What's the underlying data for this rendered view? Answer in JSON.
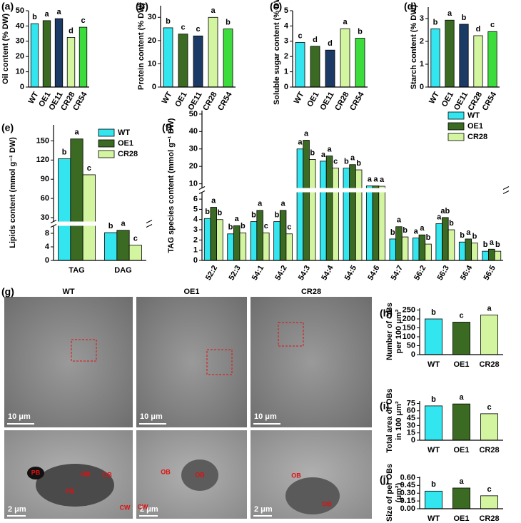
{
  "chart_data": [
    {
      "type": "bar",
      "panel": "(a)",
      "ylabel": "Oil content (% DW)",
      "categories": [
        "WT",
        "OE1",
        "OE11",
        "CR28",
        "CR54"
      ],
      "values": [
        41.5,
        43.5,
        44.8,
        32.5,
        39.2
      ],
      "colors": [
        "#33e5ee",
        "#3b6b22",
        "#1c3a66",
        "#d4f5a0",
        "#3ddc3d"
      ],
      "letters": [
        "b",
        "a",
        "a",
        "d",
        "c"
      ],
      "ylim": [
        0,
        50
      ],
      "yticks": [
        0,
        10,
        20,
        30,
        40,
        50
      ]
    },
    {
      "type": "bar",
      "panel": "(b)",
      "ylabel": "Protein content (% DW)",
      "categories": [
        "WT",
        "OE1",
        "OE11",
        "CR28",
        "CR54"
      ],
      "values": [
        25.5,
        22.8,
        22,
        30,
        25
      ],
      "colors": [
        "#33e5ee",
        "#3b6b22",
        "#1c3a66",
        "#d4f5a0",
        "#3ddc3d"
      ],
      "letters": [
        "b",
        "c",
        "c",
        "a",
        "b"
      ],
      "ylim": [
        0,
        35
      ],
      "yticks": [
        0,
        10,
        20,
        30
      ]
    },
    {
      "type": "bar",
      "panel": "(c)",
      "ylabel": "Soluble sugar content (% DW)",
      "categories": [
        "WT",
        "OE1",
        "OE11",
        "CR28",
        "CR54"
      ],
      "values": [
        2.92,
        2.67,
        2.42,
        3.82,
        3.2
      ],
      "colors": [
        "#33e5ee",
        "#3b6b22",
        "#1c3a66",
        "#d4f5a0",
        "#3ddc3d"
      ],
      "letters": [
        "c",
        "d",
        "d",
        "a",
        "b"
      ],
      "ylim": [
        0,
        5
      ],
      "yticks": [
        0,
        1,
        2,
        3,
        4,
        5
      ]
    },
    {
      "type": "bar",
      "panel": "(d)",
      "ylabel": "Starch content (% DW)",
      "categories": [
        "WT",
        "OE1",
        "OE11",
        "CR28",
        "CR54"
      ],
      "values": [
        2.55,
        2.93,
        2.75,
        2.25,
        2.43
      ],
      "colors": [
        "#33e5ee",
        "#3b6b22",
        "#1c3a66",
        "#d4f5a0",
        "#3ddc3d"
      ],
      "letters": [
        "b",
        "a",
        "b",
        "d",
        "c"
      ],
      "ylim": [
        0,
        3.5
      ],
      "yticks": [
        0,
        1,
        2,
        3
      ]
    },
    {
      "type": "bar",
      "panel": "(e)",
      "ylabel": "Lipids content (mmol g⁻¹ DW)",
      "categories": [
        "TAG",
        "DAG"
      ],
      "series": [
        {
          "name": "WT",
          "color": "#33e5ee",
          "values": [
            122,
            8.2
          ],
          "letters": [
            "b",
            "b"
          ]
        },
        {
          "name": "OE1",
          "color": "#3b6b22",
          "values": [
            153,
            10.2
          ],
          "letters": [
            "a",
            "a"
          ]
        },
        {
          "name": "CR28",
          "color": "#d4f5a0",
          "values": [
            97,
            4.5
          ],
          "letters": [
            "c",
            "c"
          ]
        }
      ],
      "ylim": [
        0,
        175
      ],
      "ybreak": [
        10,
        25
      ],
      "yticks": [
        0,
        4,
        8,
        30,
        60,
        90,
        120,
        150
      ]
    },
    {
      "type": "bar",
      "panel": "(f)",
      "ylabel": "TAG species content (mmol g⁻¹ DW)",
      "categories": [
        "52:2",
        "52:3",
        "54:1",
        "54:2",
        "54:3",
        "54:4",
        "54:5",
        "54:6",
        "54:7",
        "56:2",
        "56:3",
        "56:4",
        "56:5"
      ],
      "series": [
        {
          "name": "WT",
          "color": "#33e5ee",
          "values": [
            4.1,
            2.6,
            3.8,
            3.8,
            30,
            23,
            19,
            8.8,
            2.1,
            2.2,
            3.6,
            1.8,
            0.9
          ],
          "letters": [
            "b",
            "b",
            "b",
            "b",
            "a",
            "a",
            "b",
            "a",
            "b",
            "a",
            "a",
            "b",
            "b"
          ]
        },
        {
          "name": "OE1",
          "color": "#3b6b22",
          "values": [
            5.2,
            3.4,
            4.9,
            4.9,
            35,
            26,
            21,
            8.8,
            3.3,
            2.5,
            4.2,
            2.1,
            1.1
          ],
          "letters": [
            "a",
            "a",
            "a",
            "a",
            "a",
            "a",
            "a",
            "a",
            "a",
            "a",
            "ab",
            "a",
            "a"
          ]
        },
        {
          "name": "CR28",
          "color": "#d4f5a0",
          "values": [
            4.0,
            2.7,
            2.7,
            2.6,
            24,
            19,
            18,
            8.6,
            2.3,
            1.6,
            3.0,
            1.7,
            0.9
          ],
          "letters": [
            "b",
            "b",
            "c",
            "c",
            "b",
            "c",
            "b",
            "a",
            "b",
            "b",
            "b",
            "b",
            "b"
          ]
        }
      ],
      "ylim": [
        0,
        52
      ],
      "ybreak": [
        6.6,
        8
      ],
      "yticks": [
        0,
        1,
        2,
        3,
        4,
        5,
        6,
        10,
        20,
        30,
        40,
        50
      ]
    },
    {
      "type": "bar",
      "panel": "(h)",
      "ylabel": [
        "Number of OBs",
        "per 100 μm²"
      ],
      "categories": [
        "WT",
        "OE1",
        "CR28"
      ],
      "values": [
        200,
        182,
        222
      ],
      "colors": [
        "#33e5ee",
        "#3b6b22",
        "#d4f5a0"
      ],
      "letters": [
        "b",
        "c",
        "a"
      ],
      "ylim": [
        0,
        260
      ],
      "yticks": [
        0,
        50,
        100,
        150,
        200,
        250
      ]
    },
    {
      "type": "bar",
      "panel": "(i)",
      "ylabel": [
        "Total area of OBs",
        "in 100 μm²"
      ],
      "categories": [
        "WT",
        "OE1",
        "CR28"
      ],
      "values": [
        70,
        74,
        54
      ],
      "colors": [
        "#33e5ee",
        "#3b6b22",
        "#d4f5a0"
      ],
      "letters": [
        "b",
        "a",
        "c"
      ],
      "ylim": [
        0,
        80
      ],
      "yticks": [
        0,
        15,
        30,
        45,
        60,
        75
      ]
    },
    {
      "type": "bar",
      "panel": "(j)",
      "ylabel": [
        "Size of per OBs",
        "(μm²)"
      ],
      "categories": [
        "WT",
        "OE1",
        "CR28"
      ],
      "values": [
        0.34,
        0.4,
        0.25
      ],
      "colors": [
        "#33e5ee",
        "#3b6b22",
        "#d4f5a0"
      ],
      "letters": [
        "b",
        "a",
        "c"
      ],
      "ylim": [
        0,
        0.62
      ],
      "yticks": [
        {
          "value": 0,
          "label": "0.00"
        },
        {
          "value": 0.15,
          "label": "0.15"
        },
        {
          "value": 0.3,
          "label": "0.30"
        },
        {
          "value": 0.45,
          "label": "0.45"
        },
        {
          "value": 0.6,
          "label": "0.60"
        }
      ]
    }
  ],
  "micrographs": {
    "panel": "(g)",
    "columns": [
      "WT",
      "OE1",
      "CR28"
    ],
    "scale_top": [
      "10 μm",
      "10 μm",
      "10 μm"
    ],
    "scale_bottom": [
      "2 μm",
      "2 μm",
      "2 μm"
    ],
    "annotations": [
      [
        "PB",
        "OB",
        "OB",
        "PB",
        "CW"
      ],
      [
        "OB",
        "OB",
        "CW"
      ],
      [
        "OB",
        "OB"
      ]
    ]
  }
}
